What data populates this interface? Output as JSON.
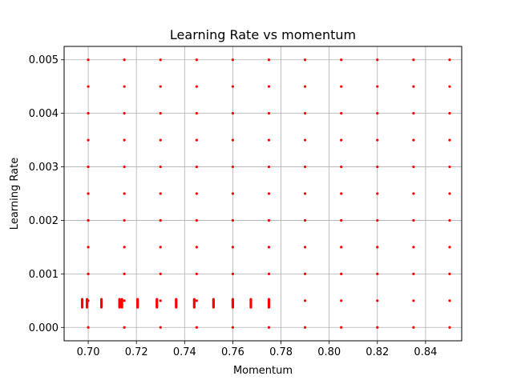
{
  "chart_data": {
    "type": "scatter",
    "title": "Learning Rate vs momentum",
    "xlabel": "Momentum",
    "ylabel": "Learning Rate",
    "xlim": [
      0.69,
      0.855
    ],
    "ylim": [
      -0.00025,
      0.00525
    ],
    "xticks": [
      0.7,
      0.72,
      0.74,
      0.76,
      0.78,
      0.8,
      0.82,
      0.84
    ],
    "xtick_labels": [
      "0.70",
      "0.72",
      "0.74",
      "0.76",
      "0.78",
      "0.80",
      "0.82",
      "0.84"
    ],
    "yticks": [
      0.0,
      0.001,
      0.002,
      0.003,
      0.004,
      0.005
    ],
    "ytick_labels": [
      "0.000",
      "0.001",
      "0.002",
      "0.003",
      "0.004",
      "0.005"
    ],
    "grid": true,
    "marker_color": "#ff0000",
    "series": [
      {
        "grid_momentum": [
          0.7,
          0.715,
          0.73,
          0.745,
          0.76,
          0.775,
          0.79,
          0.805,
          0.82,
          0.835,
          0.85
        ],
        "grid_learning_rate": [
          0.0,
          0.0005,
          0.001,
          0.0015,
          0.002,
          0.0025,
          0.003,
          0.0035,
          0.004,
          0.0045,
          0.005
        ],
        "extra_points": {
          "momentum": [
            0.6975,
            0.6995,
            0.7055,
            0.713,
            0.714,
            0.7205,
            0.7285,
            0.7365,
            0.744,
            0.752,
            0.76,
            0.7675,
            0.775
          ],
          "learning_rate": [
            0.00045,
            0.00045,
            0.00045,
            0.00045,
            0.00045,
            0.00045,
            0.00045,
            0.00045,
            0.00045,
            0.00045,
            0.00045,
            0.00045,
            0.00045
          ],
          "spread": [
            0.00015,
            0.00015,
            0.00015,
            0.00015,
            0.00015,
            0.00015,
            0.00015,
            0.00015,
            0.00015,
            0.00015,
            0.00015,
            0.00015,
            0.00015
          ]
        }
      }
    ]
  }
}
